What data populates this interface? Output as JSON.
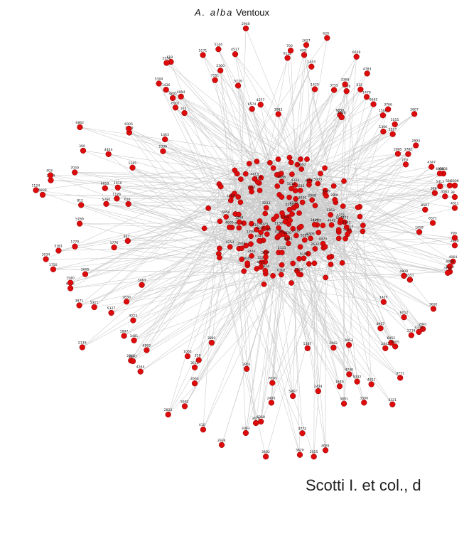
{
  "title": {
    "species": "A. alba",
    "site": "Ventoux"
  },
  "credit": "Scotti I. et col., d",
  "colors": {
    "node": "#dd0b0b",
    "edge": "#c9c9c9",
    "text": "#111111"
  },
  "network": {
    "periphery_labels": [
      "6112",
      "495",
      "700",
      "1420",
      "1443",
      "1627",
      "6858",
      "3755",
      "620",
      "2576",
      "2086",
      "3368",
      "4783",
      "6659",
      "1479",
      "1527",
      "535",
      "5555",
      "1506",
      "2085",
      "6665",
      "1366",
      "3766",
      "2807",
      "4347",
      "2893",
      "3792",
      "770",
      "5413",
      "6668",
      "584",
      "5909",
      "4856",
      "4583",
      "38",
      "326",
      "4011",
      "6571",
      "8507",
      "2480",
      "790",
      "1059",
      "4064",
      "1110",
      "4808",
      "4809",
      "4764",
      "3551",
      "3692",
      "2841",
      "6012",
      "6452",
      "4907",
      "1427",
      "2842",
      "2218",
      "3771",
      "4021",
      "4320",
      "4321",
      "4305",
      "5332",
      "3300",
      "4913",
      "2062",
      "4740",
      "3891",
      "1849",
      "4081",
      "2424",
      "5387",
      "2555",
      "5867",
      "3620",
      "3772",
      "2495",
      "7070",
      "6368",
      "3482",
      "3476",
      "3063",
      "2934",
      "2951",
      "3611",
      "410",
      "1065",
      "2822",
      "3891",
      "2663",
      "319",
      "3481",
      "5582",
      "4264",
      "2865",
      "1897",
      "2897",
      "2830",
      "2139",
      "6883",
      "5327",
      "3871",
      "5311",
      "6756",
      "3463",
      "2695",
      "4223",
      "1540",
      "3750",
      "5361",
      "3034",
      "1779",
      "847",
      "1776",
      "5789",
      "812",
      "5930",
      "5760",
      "610",
      "1124",
      "1126",
      "7039",
      "6859",
      "1910",
      "2434",
      "403",
      "399",
      "1265",
      "6862",
      "4404",
      "1463",
      "3419",
      "2339",
      "6902",
      "6005",
      "5304",
      "619",
      "162",
      "3205",
      "1436",
      "2534",
      "4904",
      "7151",
      "5171",
      "5144",
      "5719",
      "2360",
      "2940",
      "4517",
      "6574",
      "1082",
      "4277"
    ],
    "core_labels": [
      "5147",
      "4624",
      "5328",
      "1759",
      "4023",
      "2844",
      "4600",
      "3929",
      "2891",
      "3326",
      "4470",
      "2111",
      "1614",
      "5050",
      "2632",
      "4088",
      "5090",
      "1250",
      "6341",
      "6305",
      "6129",
      "4333",
      "3373",
      "4642",
      "1729",
      "1138",
      "5285",
      "1163",
      "2098",
      "2401",
      "5011",
      "416",
      "1640",
      "5094",
      "5088",
      "1209",
      "3429",
      "4725",
      "4420",
      "6453",
      "3966",
      "6503",
      "2216",
      "4813",
      "2632",
      "4253",
      "3233",
      "3050",
      "3349",
      "5003",
      "2961",
      "4255",
      "1058",
      "2532",
      "3040",
      "2441",
      "4461",
      "1921",
      "1784",
      "6031",
      "6302"
    ]
  }
}
